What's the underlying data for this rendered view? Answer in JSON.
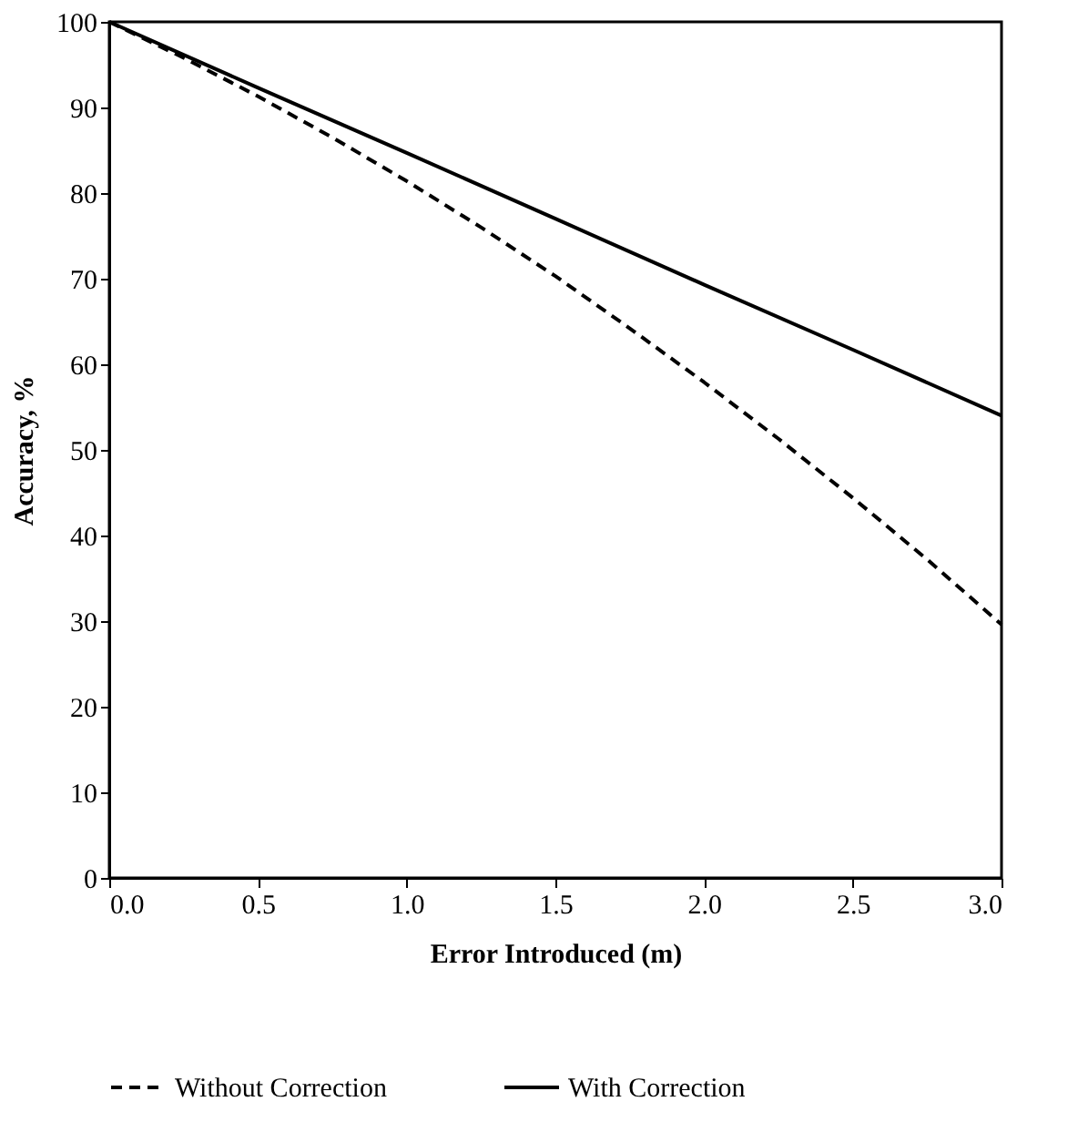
{
  "chart_data": {
    "type": "line",
    "xlabel": "Error Introduced (m)",
    "ylabel": "Accuracy, %",
    "xlim": [
      0,
      3
    ],
    "xticks": [
      {
        "value": 0,
        "label": "0.0"
      },
      {
        "value": 0.5,
        "label": "0.5"
      },
      {
        "value": 1,
        "label": "1.0"
      },
      {
        "value": 1.5,
        "label": "1.5"
      },
      {
        "value": 2,
        "label": "2.0"
      },
      {
        "value": 2.5,
        "label": "2.5"
      },
      {
        "value": 3,
        "label": "3.0"
      }
    ],
    "ylim": [
      0,
      100
    ],
    "yticks": [
      0,
      10,
      20,
      30,
      40,
      50,
      60,
      70,
      80,
      90,
      100
    ],
    "grid": false,
    "legend": "bottom",
    "marker": "none",
    "series": [
      {
        "name": "Without Correction",
        "color": "#000000",
        "line_style": "dashed",
        "x": [
          0,
          0.25,
          0.5,
          0.75,
          1,
          1.25,
          1.5,
          1.75,
          2,
          2.25,
          2.5,
          2.75,
          3
        ],
        "values": [
          100,
          95.8,
          91.3,
          86.5,
          81.4,
          76.0,
          70.3,
          64.2,
          57.9,
          51.3,
          44.4,
          37.2,
          29.6
        ]
      },
      {
        "name": "With Correction",
        "color": "#000000",
        "line_style": "solid",
        "x": [
          0,
          0.5,
          1,
          1.5,
          2,
          2.5,
          3
        ],
        "values": [
          100,
          92.3,
          84.7,
          77,
          69.3,
          61.7,
          54
        ]
      }
    ]
  }
}
